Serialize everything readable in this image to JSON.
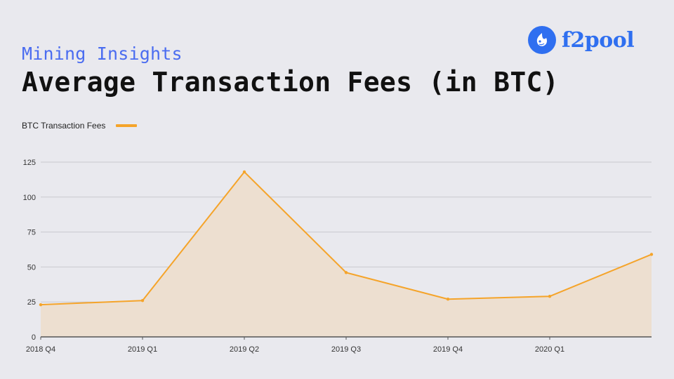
{
  "header": {
    "subtitle": "Mining Insights",
    "title": "Average Transaction Fees (in BTC)"
  },
  "brand": {
    "name": "f2pool",
    "color": "#2f6ff0",
    "icon": "f2pool-fish-icon"
  },
  "legend": {
    "label": "BTC Transaction Fees"
  },
  "chart_data": {
    "type": "area",
    "categories": [
      "2018 Q4",
      "2019 Q1",
      "2019 Q2",
      "2019 Q3",
      "2019 Q4",
      "2020 Q1",
      ""
    ],
    "series": [
      {
        "name": "BTC Transaction Fees",
        "values": [
          23,
          26,
          118,
          46,
          27,
          29,
          59
        ],
        "color": "#f5a42a",
        "fill": "#eddfd0"
      }
    ],
    "yticks": [
      0,
      25,
      50,
      75,
      100,
      125
    ],
    "ylim": [
      0,
      125
    ],
    "grid": true,
    "legend_position": "top-left"
  }
}
